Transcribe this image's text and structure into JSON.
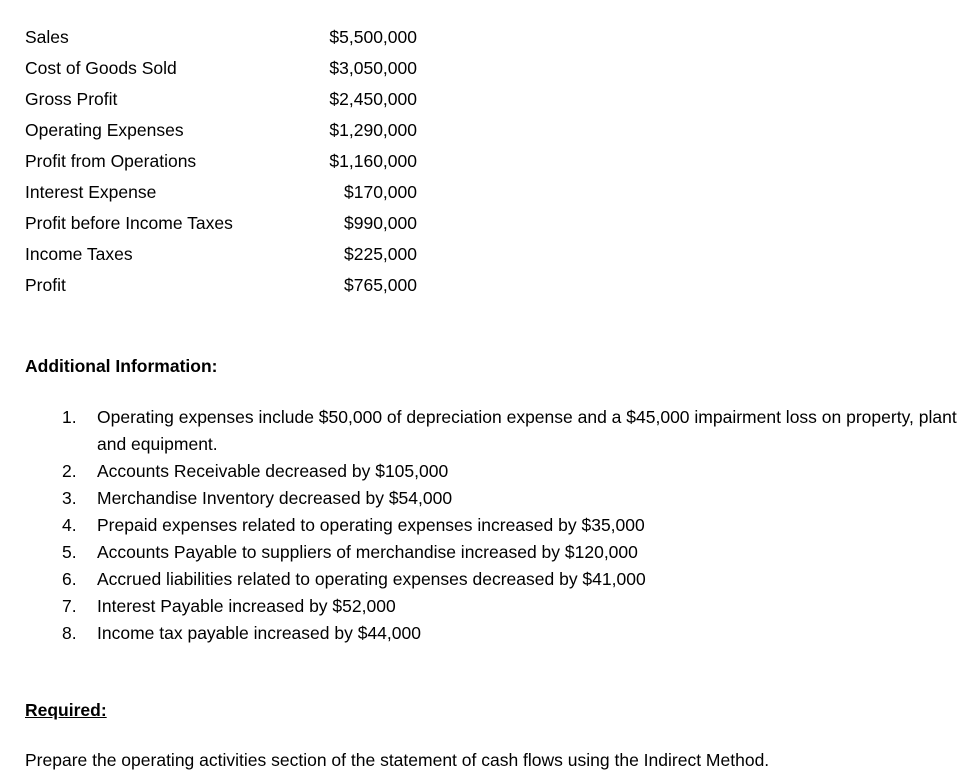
{
  "income_statement": [
    {
      "label": "Sales",
      "value": "$5,500,000"
    },
    {
      "label": "Cost of Goods Sold",
      "value": "$3,050,000"
    },
    {
      "label": "Gross Profit",
      "value": "$2,450,000"
    },
    {
      "label": "Operating Expenses",
      "value": "$1,290,000"
    },
    {
      "label": "Profit from Operations",
      "value": "$1,160,000"
    },
    {
      "label": "Interest Expense",
      "value": "$170,000"
    },
    {
      "label": "Profit before Income Taxes",
      "value": "$990,000"
    },
    {
      "label": "Income Taxes",
      "value": "$225,000"
    },
    {
      "label": "Profit",
      "value": "$765,000"
    }
  ],
  "additional": {
    "heading": "Additional Information:",
    "items": [
      {
        "num": "1.",
        "text": "Operating expenses include $50,000 of depreciation expense and a $45,000 impairment loss on property, plant and equipment."
      },
      {
        "num": "2.",
        "text": "Accounts Receivable decreased by $105,000"
      },
      {
        "num": "3.",
        "text": "Merchandise Inventory decreased by $54,000"
      },
      {
        "num": "4.",
        "text": "Prepaid expenses related to operating expenses increased by $35,000"
      },
      {
        "num": "5.",
        "text": "Accounts Payable to suppliers of merchandise increased by $120,000"
      },
      {
        "num": "6.",
        "text": "Accrued liabilities related to operating expenses decreased by $41,000"
      },
      {
        "num": "7.",
        "text": "Interest Payable increased by $52,000"
      },
      {
        "num": "8.",
        "text": "Income tax payable increased by $44,000"
      }
    ]
  },
  "required": {
    "heading": "Required:",
    "text": "Prepare the operating activities section of the statement of cash flows using the Indirect Method."
  }
}
